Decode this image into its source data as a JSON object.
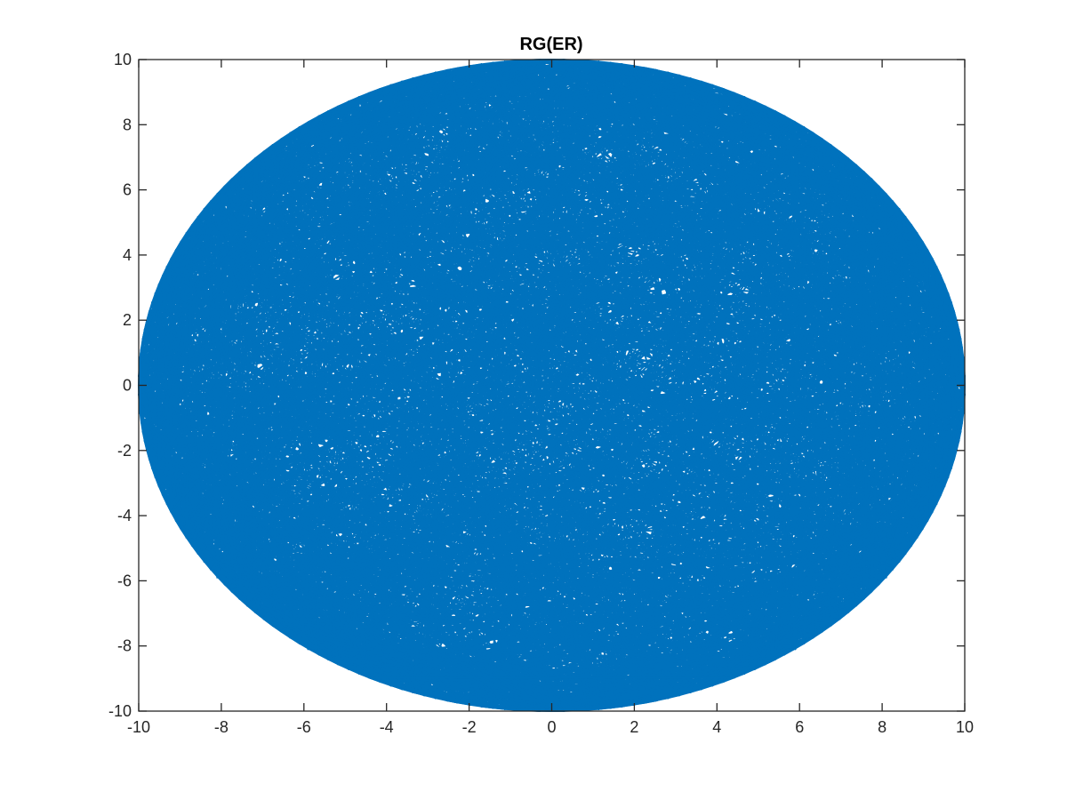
{
  "chart_data": {
    "type": "line",
    "chart_subtype": "random-graph-circular-layout",
    "title": "RG(ER)",
    "xlabel": "",
    "ylabel": "",
    "xlim": [
      -10,
      10
    ],
    "ylim": [
      -10,
      10
    ],
    "xticks": [
      -10,
      -8,
      -6,
      -4,
      -2,
      0,
      2,
      4,
      6,
      8,
      10
    ],
    "yticks": [
      -10,
      -8,
      -6,
      -4,
      -2,
      0,
      2,
      4,
      6,
      8,
      10
    ],
    "xtick_labels": [
      "-10",
      "-8",
      "-6",
      "-4",
      "-2",
      "0",
      "2",
      "4",
      "6",
      "8",
      "10"
    ],
    "ytick_labels": [
      "-10",
      "-8",
      "-6",
      "-4",
      "-2",
      "0",
      "2",
      "4",
      "6",
      "8",
      "10"
    ],
    "grid": false,
    "box": true,
    "legend": "none",
    "layout": {
      "shape": "circle",
      "center": [
        0,
        0
      ],
      "radius": 10
    },
    "line_color": "#0072BD",
    "axes_color": "#262626",
    "background": "#ffffff",
    "series": [
      {
        "values_note": "dense set of chords connecting points on a circle of radius 10",
        "sample_chords": [
          [
            [
              -10,
              0
            ],
            [
              10,
              0
            ]
          ],
          [
            [
              0,
              10
            ],
            [
              0,
              -10
            ]
          ],
          [
            [
              -7.07,
              7.07
            ],
            [
              7.07,
              -7.07
            ]
          ],
          [
            [
              -7.07,
              -7.07
            ],
            [
              7.07,
              7.07
            ]
          ],
          [
            [
              -9.5,
              3.1
            ],
            [
              8.1,
              -5.9
            ]
          ],
          [
            [
              -3.1,
              9.5
            ],
            [
              5.9,
              -8.1
            ]
          ],
          [
            [
              9.5,
              3.1
            ],
            [
              -8.1,
              -5.9
            ]
          ],
          [
            [
              3.1,
              9.5
            ],
            [
              -5.9,
              -8.1
            ]
          ]
        ]
      }
    ]
  }
}
